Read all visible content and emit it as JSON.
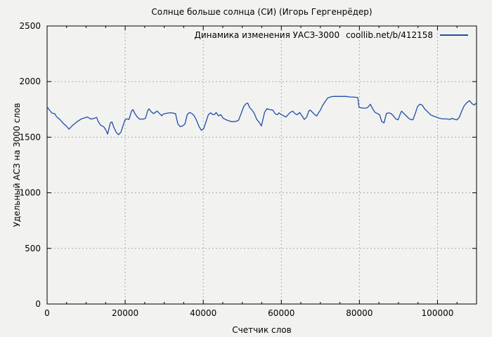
{
  "chart_data": {
    "type": "line",
    "title": "Солнце больше солнца (СИ) (Игорь Гергенрёдер)",
    "xlabel": "Счетчик слов",
    "ylabel": "Удельный АСЗ на 3000 слов",
    "xlim": [
      0,
      110000
    ],
    "ylim": [
      0,
      2500
    ],
    "x_ticks": [
      0,
      20000,
      40000,
      60000,
      80000,
      100000
    ],
    "x_tick_labels": [
      "0",
      "20000",
      "40000",
      "60000",
      "80000",
      "100000"
    ],
    "x_minor_step": 5000,
    "y_ticks": [
      0,
      500,
      1000,
      1500,
      2000,
      2500
    ],
    "y_tick_labels": [
      "0",
      "500",
      "1000",
      "1500",
      "2000",
      "2500"
    ],
    "grid": true,
    "legend_position": "top-right-inside",
    "legend": {
      "series_label": "Динамика изменения УАСЗ-3000",
      "source_label": "coollib.net/b/412158"
    },
    "colors": {
      "background": "#f2f2f0",
      "frame": "#000000",
      "grid": "#ababab",
      "line": "#1e4ea8"
    },
    "series": [
      {
        "name": "Динамика изменения УАСЗ-3000",
        "color": "#1e4ea8",
        "points": [
          [
            0,
            1775
          ],
          [
            500,
            1748
          ],
          [
            1200,
            1718
          ],
          [
            2000,
            1710
          ],
          [
            2400,
            1685
          ],
          [
            3200,
            1662
          ],
          [
            4100,
            1625
          ],
          [
            5000,
            1598
          ],
          [
            5600,
            1572
          ],
          [
            6500,
            1605
          ],
          [
            7700,
            1640
          ],
          [
            8800,
            1665
          ],
          [
            9700,
            1675
          ],
          [
            10300,
            1682
          ],
          [
            11200,
            1663
          ],
          [
            12100,
            1670
          ],
          [
            12700,
            1678
          ],
          [
            13100,
            1640
          ],
          [
            13700,
            1608
          ],
          [
            14500,
            1595
          ],
          [
            15100,
            1562
          ],
          [
            15500,
            1528
          ],
          [
            16200,
            1628
          ],
          [
            16600,
            1638
          ],
          [
            17100,
            1588
          ],
          [
            17700,
            1545
          ],
          [
            18300,
            1522
          ],
          [
            18900,
            1545
          ],
          [
            19500,
            1608
          ],
          [
            20000,
            1658
          ],
          [
            20500,
            1665
          ],
          [
            21000,
            1660
          ],
          [
            21600,
            1733
          ],
          [
            22000,
            1748
          ],
          [
            22500,
            1712
          ],
          [
            23100,
            1682
          ],
          [
            23700,
            1663
          ],
          [
            24600,
            1663
          ],
          [
            25200,
            1670
          ],
          [
            25800,
            1740
          ],
          [
            26100,
            1755
          ],
          [
            26700,
            1727
          ],
          [
            27300,
            1712
          ],
          [
            27900,
            1728
          ],
          [
            28200,
            1735
          ],
          [
            28800,
            1712
          ],
          [
            29400,
            1692
          ],
          [
            29700,
            1707
          ],
          [
            30300,
            1712
          ],
          [
            31100,
            1718
          ],
          [
            31800,
            1720
          ],
          [
            32900,
            1712
          ],
          [
            33500,
            1618
          ],
          [
            34100,
            1595
          ],
          [
            34700,
            1601
          ],
          [
            35300,
            1618
          ],
          [
            35900,
            1703
          ],
          [
            36500,
            1723
          ],
          [
            37100,
            1712
          ],
          [
            37700,
            1692
          ],
          [
            38300,
            1650
          ],
          [
            38900,
            1597
          ],
          [
            39500,
            1562
          ],
          [
            40100,
            1576
          ],
          [
            40700,
            1638
          ],
          [
            41300,
            1702
          ],
          [
            41900,
            1720
          ],
          [
            42500,
            1702
          ],
          [
            43000,
            1707
          ],
          [
            43300,
            1723
          ],
          [
            43900,
            1692
          ],
          [
            44500,
            1702
          ],
          [
            45100,
            1670
          ],
          [
            45700,
            1660
          ],
          [
            46300,
            1650
          ],
          [
            47200,
            1640
          ],
          [
            48100,
            1640
          ],
          [
            49000,
            1650
          ],
          [
            49600,
            1702
          ],
          [
            50400,
            1777
          ],
          [
            51000,
            1802
          ],
          [
            51400,
            1806
          ],
          [
            51900,
            1765
          ],
          [
            52500,
            1744
          ],
          [
            53100,
            1712
          ],
          [
            53700,
            1660
          ],
          [
            54300,
            1636
          ],
          [
            54900,
            1601
          ],
          [
            55700,
            1723
          ],
          [
            56300,
            1756
          ],
          [
            56900,
            1749
          ],
          [
            57800,
            1744
          ],
          [
            58400,
            1712
          ],
          [
            59000,
            1702
          ],
          [
            59400,
            1719
          ],
          [
            60000,
            1702
          ],
          [
            60600,
            1692
          ],
          [
            61200,
            1681
          ],
          [
            61700,
            1702
          ],
          [
            62300,
            1723
          ],
          [
            62900,
            1734
          ],
          [
            63500,
            1712
          ],
          [
            64100,
            1702
          ],
          [
            64700,
            1723
          ],
          [
            65300,
            1692
          ],
          [
            65900,
            1660
          ],
          [
            66500,
            1681
          ],
          [
            67000,
            1734
          ],
          [
            67400,
            1744
          ],
          [
            68000,
            1723
          ],
          [
            68600,
            1702
          ],
          [
            69100,
            1692
          ],
          [
            69400,
            1712
          ],
          [
            70000,
            1744
          ],
          [
            70600,
            1787
          ],
          [
            71200,
            1818
          ],
          [
            71800,
            1850
          ],
          [
            72400,
            1860
          ],
          [
            73300,
            1867
          ],
          [
            74500,
            1867
          ],
          [
            75700,
            1867
          ],
          [
            76600,
            1867
          ],
          [
            77600,
            1862
          ],
          [
            78800,
            1860
          ],
          [
            79600,
            1856
          ],
          [
            79900,
            1768
          ],
          [
            80300,
            1765
          ],
          [
            81000,
            1761
          ],
          [
            81800,
            1762
          ],
          [
            82200,
            1770
          ],
          [
            82800,
            1797
          ],
          [
            83400,
            1755
          ],
          [
            84000,
            1723
          ],
          [
            84600,
            1713
          ],
          [
            85200,
            1700
          ],
          [
            85700,
            1642
          ],
          [
            86300,
            1628
          ],
          [
            86900,
            1713
          ],
          [
            87500,
            1719
          ],
          [
            88100,
            1713
          ],
          [
            88700,
            1692
          ],
          [
            89300,
            1664
          ],
          [
            89900,
            1656
          ],
          [
            90500,
            1713
          ],
          [
            90800,
            1734
          ],
          [
            91400,
            1713
          ],
          [
            92000,
            1692
          ],
          [
            92600,
            1670
          ],
          [
            93100,
            1660
          ],
          [
            93700,
            1656
          ],
          [
            94300,
            1713
          ],
          [
            94900,
            1776
          ],
          [
            95500,
            1797
          ],
          [
            96100,
            1787
          ],
          [
            96700,
            1755
          ],
          [
            97300,
            1734
          ],
          [
            98200,
            1702
          ],
          [
            98800,
            1692
          ],
          [
            99700,
            1681
          ],
          [
            100500,
            1670
          ],
          [
            101400,
            1664
          ],
          [
            102300,
            1664
          ],
          [
            103200,
            1660
          ],
          [
            103800,
            1670
          ],
          [
            104400,
            1660
          ],
          [
            105000,
            1656
          ],
          [
            105600,
            1681
          ],
          [
            106200,
            1734
          ],
          [
            106800,
            1780
          ],
          [
            107500,
            1810
          ],
          [
            108200,
            1828
          ],
          [
            108900,
            1800
          ],
          [
            109400,
            1790
          ],
          [
            109900,
            1805
          ]
        ]
      }
    ]
  }
}
